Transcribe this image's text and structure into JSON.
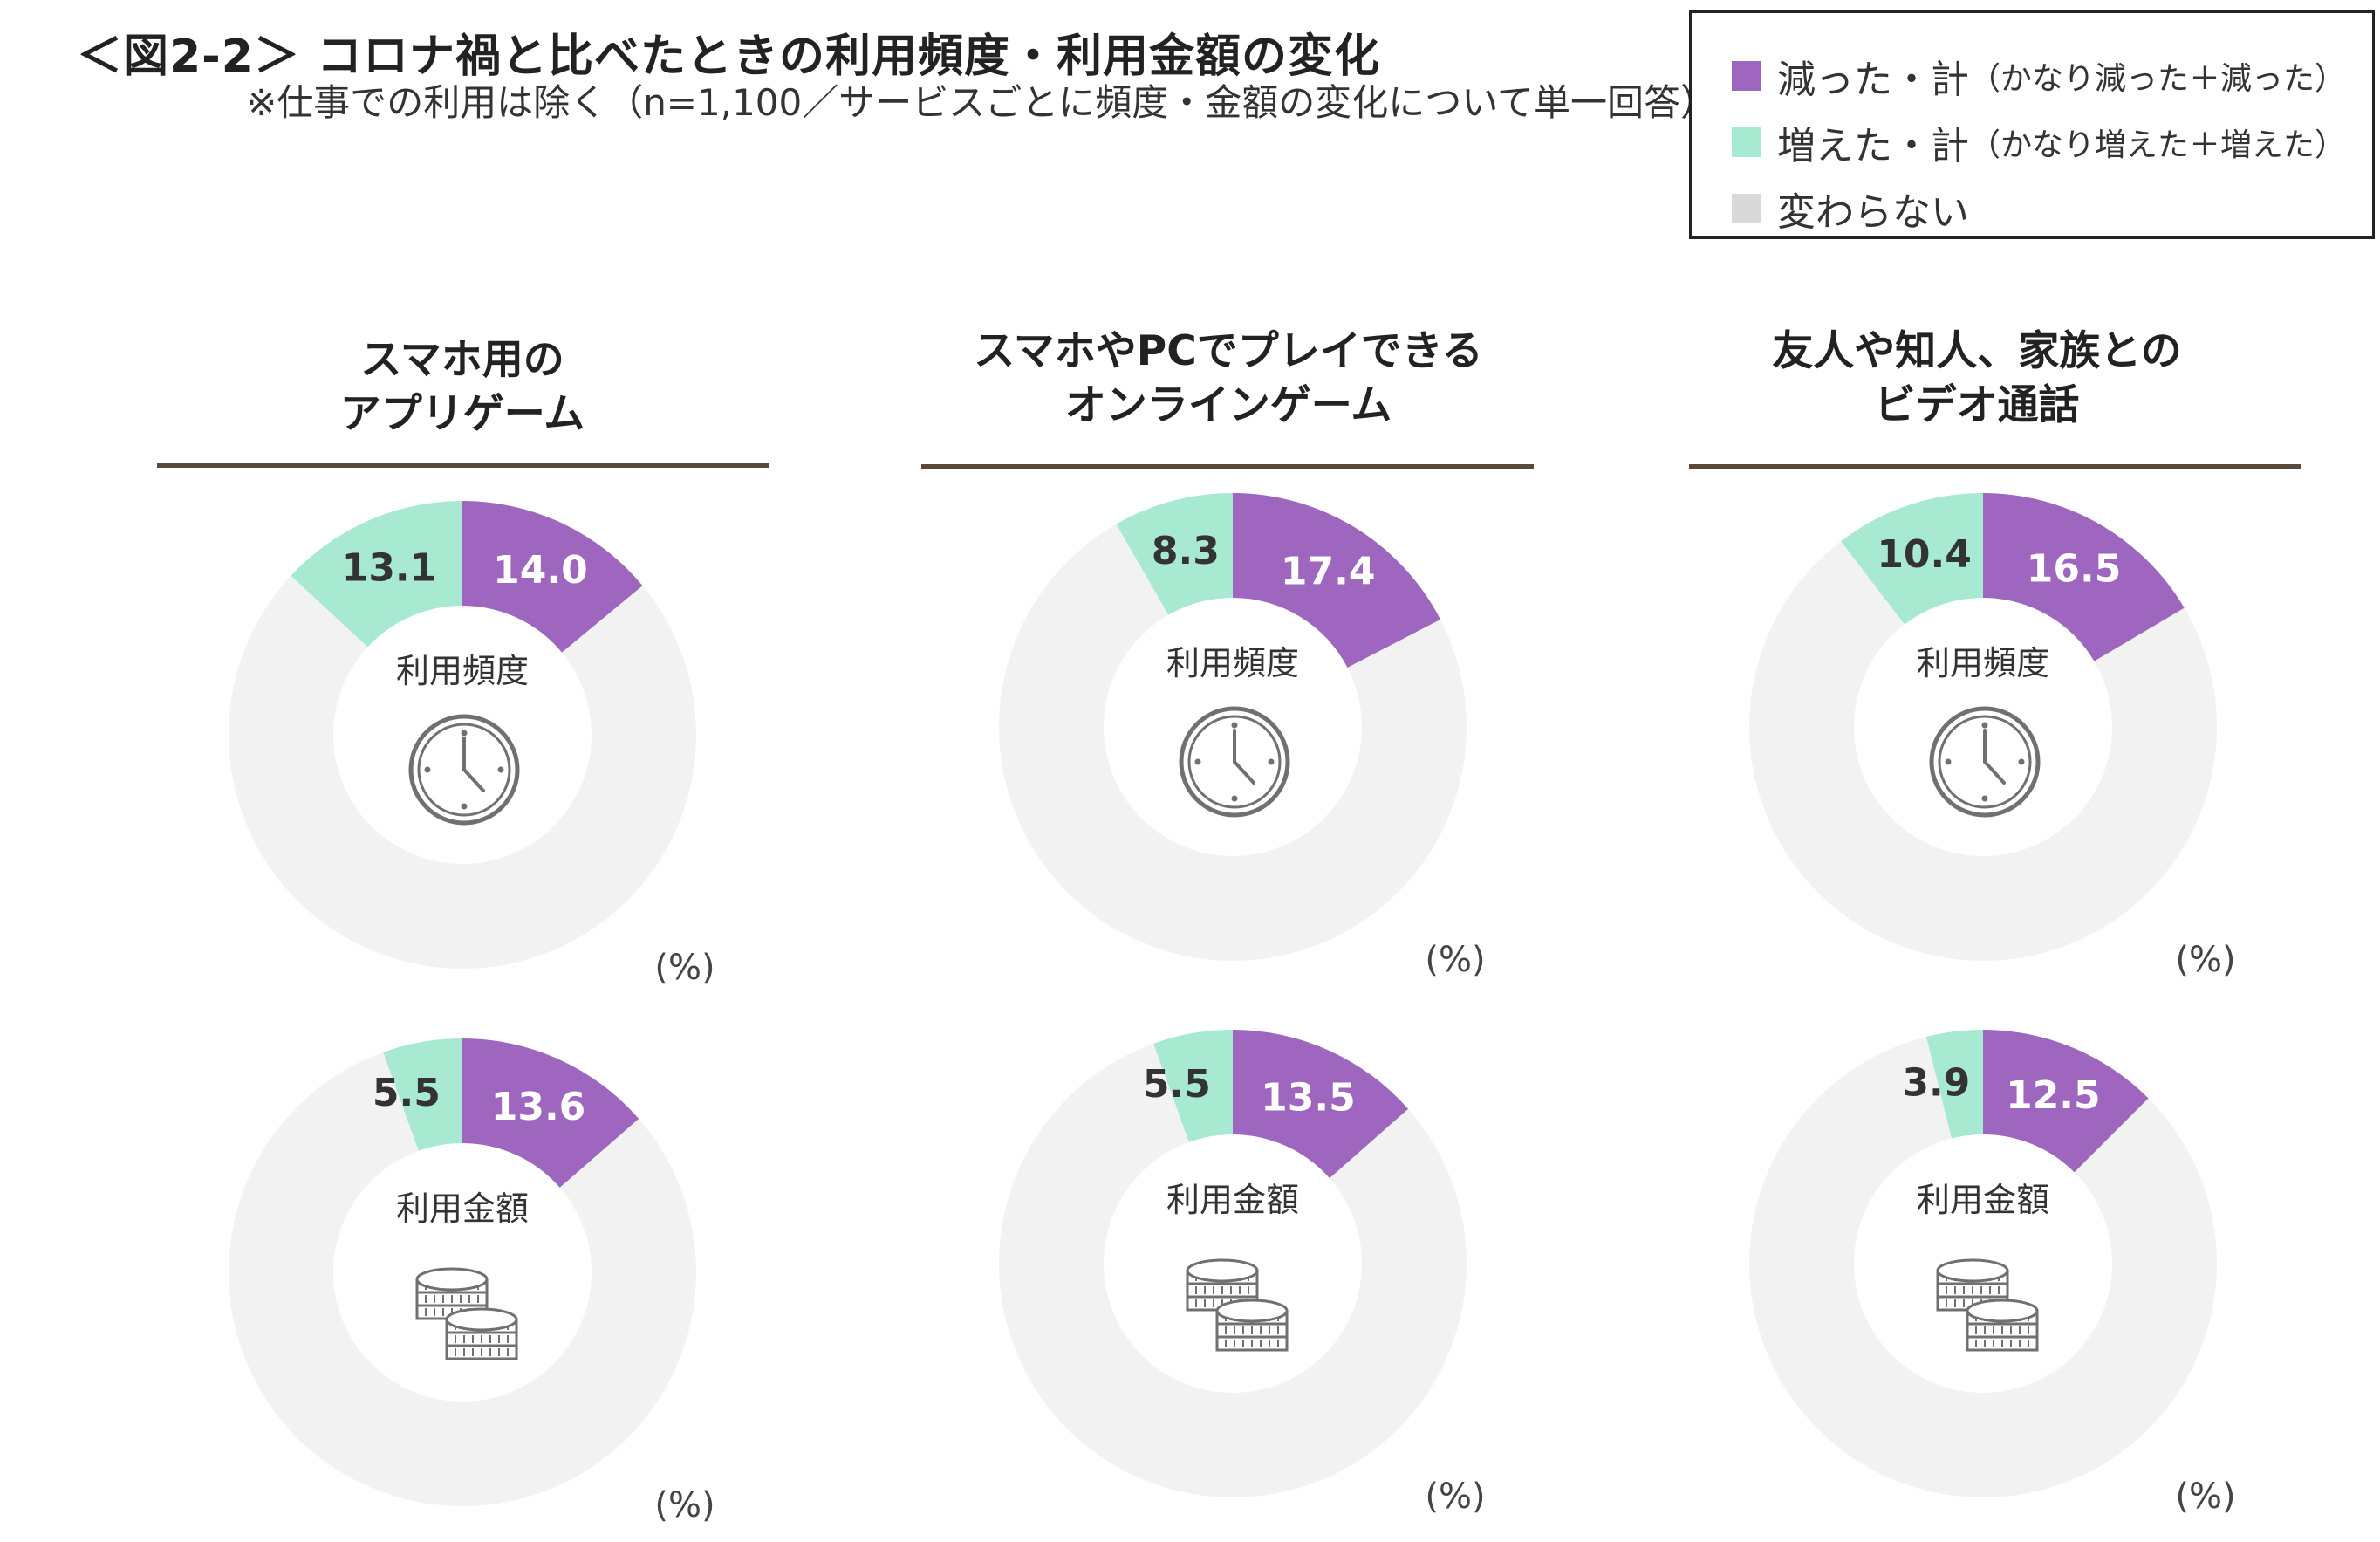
{
  "title": "＜図2-2＞ コロナ禍と比べたときの利用頻度・利用金額の変化",
  "subtitle": "※仕事での利用は除く（n=1,100／サービスごとに頻度・金額の変化について単一回答）",
  "legend": [
    {
      "main": "減った・計",
      "sub": "（かなり減った＋減った）",
      "color": "#9E66BE"
    },
    {
      "main": "増えた・計",
      "sub": "（かなり増えた＋増えた）",
      "color": "#A8E9D2"
    },
    {
      "main": "変わらない",
      "sub": "",
      "color": "#D9D9D9"
    }
  ],
  "colors": {
    "decreased": "#9E66BE",
    "increased": "#A8E9D2",
    "unchanged": "#F2F2F2",
    "icon": "#707070"
  },
  "columns": [
    {
      "title_line1": "スマホ用の",
      "title_line2": "アプリゲーム"
    },
    {
      "title_line1": "スマホやPCでプレイできる",
      "title_line2": "オンラインゲーム"
    },
    {
      "title_line1": "友人や知人、家族との",
      "title_line2": "ビデオ通話"
    }
  ],
  "unit_label": "(%)",
  "chart_data": [
    {
      "type": "pie",
      "service": "スマホ用のアプリゲーム",
      "metric": "利用頻度",
      "icon": "clock-icon",
      "series": [
        {
          "name": "減った・計",
          "value": 14.0
        },
        {
          "name": "増えた・計",
          "value": 13.1
        },
        {
          "name": "変わらない",
          "value": 72.9
        }
      ]
    },
    {
      "type": "pie",
      "service": "スマホやPCでプレイできるオンラインゲーム",
      "metric": "利用頻度",
      "icon": "clock-icon",
      "series": [
        {
          "name": "減った・計",
          "value": 17.4
        },
        {
          "name": "増えた・計",
          "value": 8.3
        },
        {
          "name": "変わらない",
          "value": 74.3
        }
      ]
    },
    {
      "type": "pie",
      "service": "友人や知人、家族とのビデオ通話",
      "metric": "利用頻度",
      "icon": "clock-icon",
      "series": [
        {
          "name": "減った・計",
          "value": 16.5
        },
        {
          "name": "増えた・計",
          "value": 10.4
        },
        {
          "name": "変わらない",
          "value": 73.1
        }
      ]
    },
    {
      "type": "pie",
      "service": "スマホ用のアプリゲーム",
      "metric": "利用金額",
      "icon": "coins-icon",
      "series": [
        {
          "name": "減った・計",
          "value": 13.6
        },
        {
          "name": "増えた・計",
          "value": 5.5
        },
        {
          "name": "変わらない",
          "value": 80.9
        }
      ]
    },
    {
      "type": "pie",
      "service": "スマホやPCでプレイできるオンラインゲーム",
      "metric": "利用金額",
      "icon": "coins-icon",
      "series": [
        {
          "name": "減った・計",
          "value": 13.5
        },
        {
          "name": "増えた・計",
          "value": 5.5
        },
        {
          "name": "変わらない",
          "value": 81.0
        }
      ]
    },
    {
      "type": "pie",
      "service": "友人や知人、家族とのビデオ通話",
      "metric": "利用金額",
      "icon": "coins-icon",
      "series": [
        {
          "name": "減った・計",
          "value": 12.5
        },
        {
          "name": "増えた・計",
          "value": 3.9
        },
        {
          "name": "変わらない",
          "value": 83.6
        }
      ]
    }
  ]
}
